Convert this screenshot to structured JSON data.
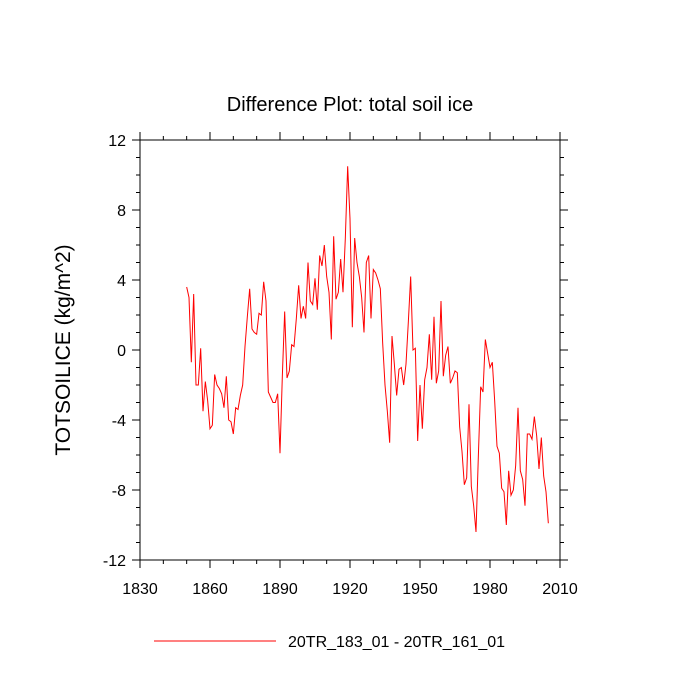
{
  "chart_data": {
    "type": "line",
    "title": "Difference Plot: total soil ice",
    "xlabel": "",
    "ylabel": "TOTSOILICE  (kg/m^2)",
    "xlim": [
      1830,
      2010
    ],
    "ylim": [
      -12,
      12
    ],
    "xticks": [
      1830,
      1860,
      1890,
      1920,
      1950,
      1980,
      2010
    ],
    "xtick_labels": [
      "1830",
      "1860",
      "1890",
      "1920",
      "1950",
      "1980",
      "2010"
    ],
    "yticks": [
      -12,
      -8,
      -4,
      0,
      4,
      8,
      12
    ],
    "ytick_labels": [
      "-12",
      "-8",
      "-4",
      "0",
      "4",
      "8",
      "12"
    ],
    "grid": false,
    "legend_position": "bottom-center",
    "series": [
      {
        "name": "20TR_183_01 - 20TR_161_01",
        "color": "#ff0000",
        "x": [
          1850,
          1851,
          1852,
          1853,
          1854,
          1855,
          1856,
          1857,
          1858,
          1859,
          1860,
          1861,
          1862,
          1863,
          1864,
          1865,
          1866,
          1867,
          1868,
          1869,
          1870,
          1871,
          1872,
          1873,
          1874,
          1875,
          1876,
          1877,
          1878,
          1879,
          1880,
          1881,
          1882,
          1883,
          1884,
          1885,
          1886,
          1887,
          1888,
          1889,
          1890,
          1891,
          1892,
          1893,
          1894,
          1895,
          1896,
          1897,
          1898,
          1899,
          1900,
          1901,
          1902,
          1903,
          1904,
          1905,
          1906,
          1907,
          1908,
          1909,
          1910,
          1911,
          1912,
          1913,
          1914,
          1915,
          1916,
          1917,
          1918,
          1919,
          1920,
          1921,
          1922,
          1923,
          1924,
          1925,
          1926,
          1927,
          1928,
          1929,
          1930,
          1931,
          1932,
          1933,
          1934,
          1935,
          1936,
          1937,
          1938,
          1939,
          1940,
          1941,
          1942,
          1943,
          1944,
          1945,
          1946,
          1947,
          1948,
          1949,
          1950,
          1951,
          1952,
          1953,
          1954,
          1955,
          1956,
          1957,
          1958,
          1959,
          1960,
          1961,
          1962,
          1963,
          1964,
          1965,
          1966,
          1967,
          1968,
          1969,
          1970,
          1971,
          1972,
          1973,
          1974,
          1975,
          1976,
          1977,
          1978,
          1979,
          1980,
          1981,
          1982,
          1983,
          1984,
          1985,
          1986,
          1987,
          1988,
          1989,
          1990,
          1991,
          1992,
          1993,
          1994,
          1995,
          1996,
          1997,
          1998,
          1999,
          2000,
          2001,
          2002,
          2003,
          2004,
          2005
        ],
        "values": [
          3.6,
          3.0,
          -0.7,
          3.2,
          -2.0,
          -2.0,
          0.1,
          -3.5,
          -1.8,
          -2.9,
          -4.5,
          -4.3,
          -1.4,
          -2.0,
          -2.2,
          -2.5,
          -3.3,
          -1.5,
          -4.0,
          -4.1,
          -4.8,
          -3.3,
          -3.4,
          -2.6,
          -2.0,
          0.2,
          1.9,
          3.5,
          1.2,
          1.0,
          0.9,
          2.1,
          2.0,
          3.9,
          2.8,
          -2.4,
          -2.7,
          -3.0,
          -3.0,
          -2.5,
          -5.9,
          -1.5,
          2.2,
          -1.6,
          -1.2,
          0.3,
          0.2,
          1.8,
          3.7,
          1.8,
          2.5,
          1.8,
          5.0,
          2.8,
          2.6,
          4.1,
          2.3,
          5.4,
          4.8,
          6.0,
          4.2,
          3.3,
          0.6,
          6.5,
          2.9,
          3.3,
          5.2,
          3.3,
          6.4,
          10.5,
          7.5,
          1.3,
          6.4,
          5.0,
          4.2,
          3.0,
          1.0,
          5.0,
          5.4,
          1.8,
          4.6,
          4.4,
          4.0,
          3.5,
          0.4,
          -2.0,
          -3.5,
          -5.3,
          0.8,
          -0.8,
          -2.6,
          -1.1,
          -1.0,
          -2.0,
          -0.8,
          1.6,
          4.2,
          0.0,
          0.1,
          -5.2,
          -2.0,
          -4.5,
          -1.7,
          -1.0,
          0.9,
          -1.7,
          1.9,
          -1.9,
          -1.2,
          2.8,
          -1.5,
          -0.3,
          0.2,
          -1.9,
          -1.6,
          -1.2,
          -1.3,
          -4.4,
          -5.8,
          -7.7,
          -7.3,
          -3.1,
          -7.8,
          -8.9,
          -10.4,
          -6.1,
          -2.1,
          -2.4,
          0.6,
          -0.2,
          -1.0,
          -0.7,
          -2.9,
          -5.5,
          -5.9,
          -7.9,
          -8.1,
          -10.0,
          -6.9,
          -8.3,
          -8.0,
          -6.6,
          -3.3,
          -6.9,
          -7.4,
          -8.9,
          -4.8,
          -4.8,
          -5.1,
          -3.8,
          -4.9,
          -6.8,
          -5.0,
          -7.2,
          -8.1,
          -9.9
        ]
      }
    ]
  }
}
